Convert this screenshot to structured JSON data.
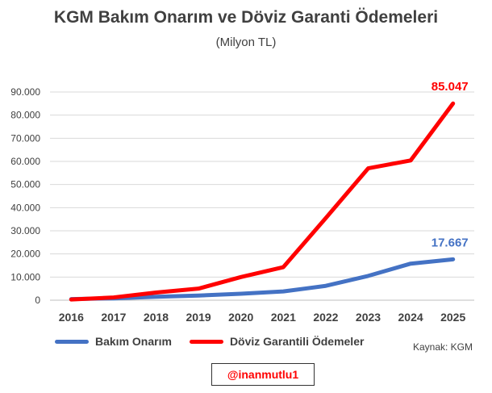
{
  "chart_data": {
    "type": "line",
    "title": "KGM Bakım Onarım ve Döviz Garanti Ödemeleri",
    "subtitle": "(Milyon TL)",
    "xlabel": "",
    "ylabel": "",
    "categories": [
      "2016",
      "2017",
      "2018",
      "2019",
      "2020",
      "2021",
      "2022",
      "2023",
      "2024",
      "2025"
    ],
    "ylim": [
      0,
      90000
    ],
    "yticks": [
      0,
      10000,
      20000,
      30000,
      40000,
      50000,
      60000,
      70000,
      80000,
      90000
    ],
    "ytick_labels": [
      "0",
      "10.000",
      "20.000",
      "30.000",
      "40.000",
      "50.000",
      "60.000",
      "70.000",
      "80.000",
      "90.000"
    ],
    "grid": true,
    "legend_position": "bottom",
    "series": [
      {
        "name": "Bakım Onarım",
        "color": "#4472c4",
        "values": [
          500,
          800,
          1500,
          2000,
          2800,
          3800,
          6200,
          10500,
          15800,
          17667
        ],
        "end_label": "17.667"
      },
      {
        "name": "Döviz Garantili Ödemeler",
        "color": "#ff0000",
        "values": [
          300,
          1200,
          3300,
          5000,
          10000,
          14300,
          35500,
          57000,
          60400,
          85047
        ],
        "end_label": "85.047"
      }
    ]
  },
  "source": "Kaynak: KGM",
  "handle": "@inanmutlu1"
}
